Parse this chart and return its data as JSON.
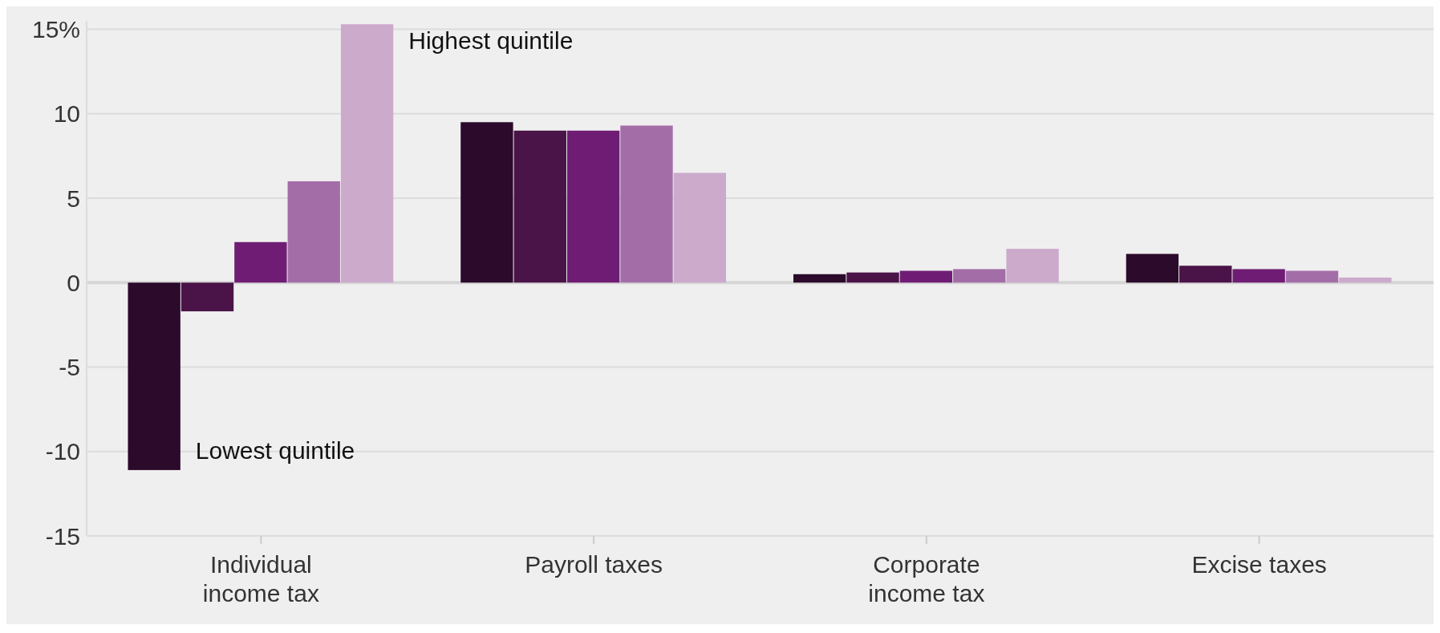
{
  "chart_data": {
    "type": "bar",
    "categories": [
      "Individual income tax",
      "Payroll taxes",
      "Corporate income tax",
      "Excise taxes"
    ],
    "series": [
      {
        "color": "#2c0a2b",
        "values": [
          -11.1,
          9.5,
          0.5,
          1.7
        ]
      },
      {
        "color": "#4a1448",
        "values": [
          -1.7,
          9.0,
          0.6,
          1.0
        ]
      },
      {
        "color": "#6f1d74",
        "values": [
          2.4,
          9.0,
          0.7,
          0.8
        ]
      },
      {
        "color": "#a36ea8",
        "values": [
          6.0,
          9.3,
          0.8,
          0.7
        ]
      },
      {
        "color": "#ccaacc",
        "values": [
          15.3,
          6.5,
          2.0,
          0.3
        ]
      }
    ],
    "ylim": [
      -15,
      15.5
    ],
    "yticks": [
      {
        "value": 15,
        "label": "15%"
      },
      10,
      5,
      0,
      -5,
      -10,
      -15
    ],
    "grid": "y",
    "annotations": [
      "Lowest quintile",
      "Highest quintile"
    ]
  }
}
